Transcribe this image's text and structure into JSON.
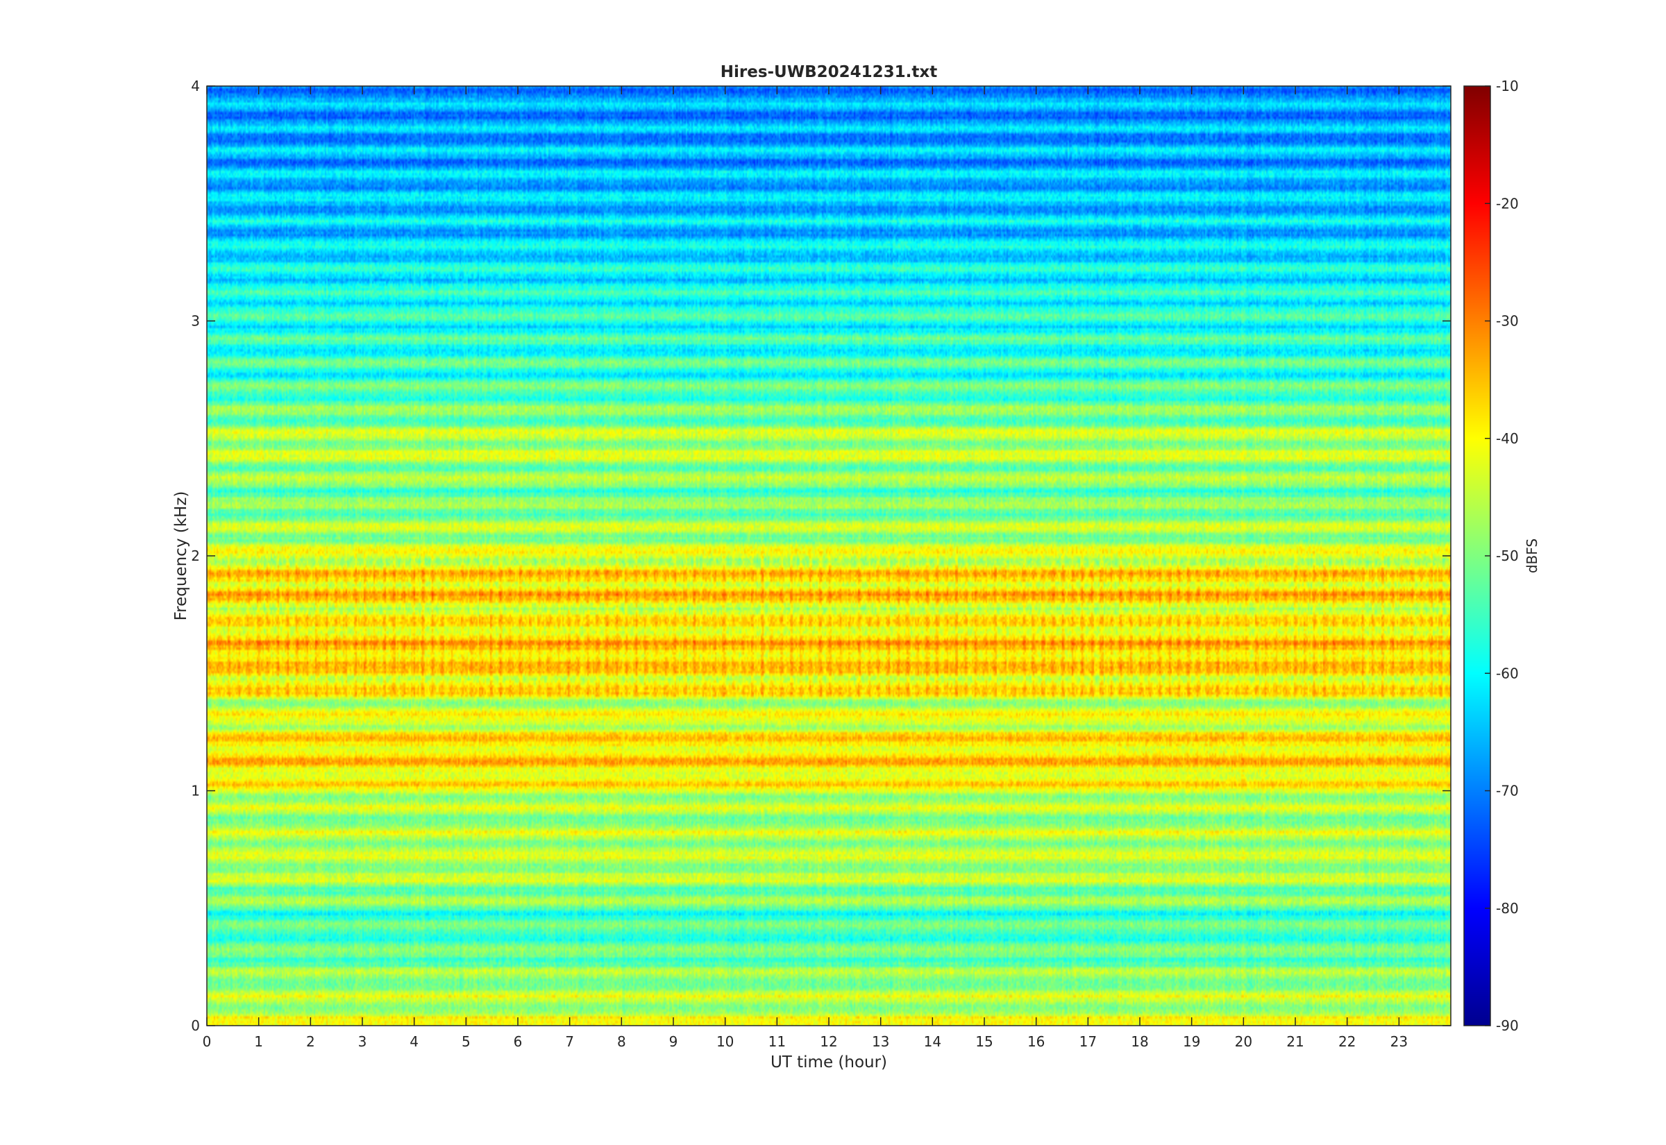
{
  "chart_data": {
    "type": "heatmap",
    "title": "Hires-UWB20241231.txt",
    "xlabel": "UT time (hour)",
    "ylabel": "Frequency (kHz)",
    "xlim": [
      0,
      24
    ],
    "ylim": [
      0,
      4
    ],
    "x_ticks": [
      "0",
      "1",
      "2",
      "3",
      "4",
      "5",
      "6",
      "7",
      "8",
      "9",
      "10",
      "11",
      "12",
      "13",
      "14",
      "15",
      "16",
      "17",
      "18",
      "19",
      "20",
      "21",
      "22",
      "23"
    ],
    "y_ticks": [
      "0",
      "1",
      "2",
      "3",
      "4"
    ],
    "colormap": "jet",
    "colorbar": {
      "label": "dBFS",
      "range": [
        -90,
        -10
      ],
      "ticks": [
        "-10",
        "-20",
        "-30",
        "-40",
        "-50",
        "-60",
        "-70",
        "-80",
        "-90"
      ]
    },
    "grid": false,
    "band_levels_dbfs": {
      "frequency_khz": [
        0.05,
        0.25,
        0.45,
        0.65,
        0.75,
        0.95,
        1.05,
        1.15,
        1.35,
        1.55,
        1.65,
        1.75,
        1.85,
        1.95,
        2.25,
        2.45,
        2.75,
        3.05,
        3.35,
        3.65,
        3.95
      ],
      "level_dbfs": [
        -44,
        -50,
        -55,
        -46,
        -47,
        -47,
        -40,
        -37,
        -44,
        -38,
        -38,
        -44,
        -37,
        -42,
        -52,
        -45,
        -56,
        -58,
        -63,
        -66,
        -68
      ]
    }
  }
}
